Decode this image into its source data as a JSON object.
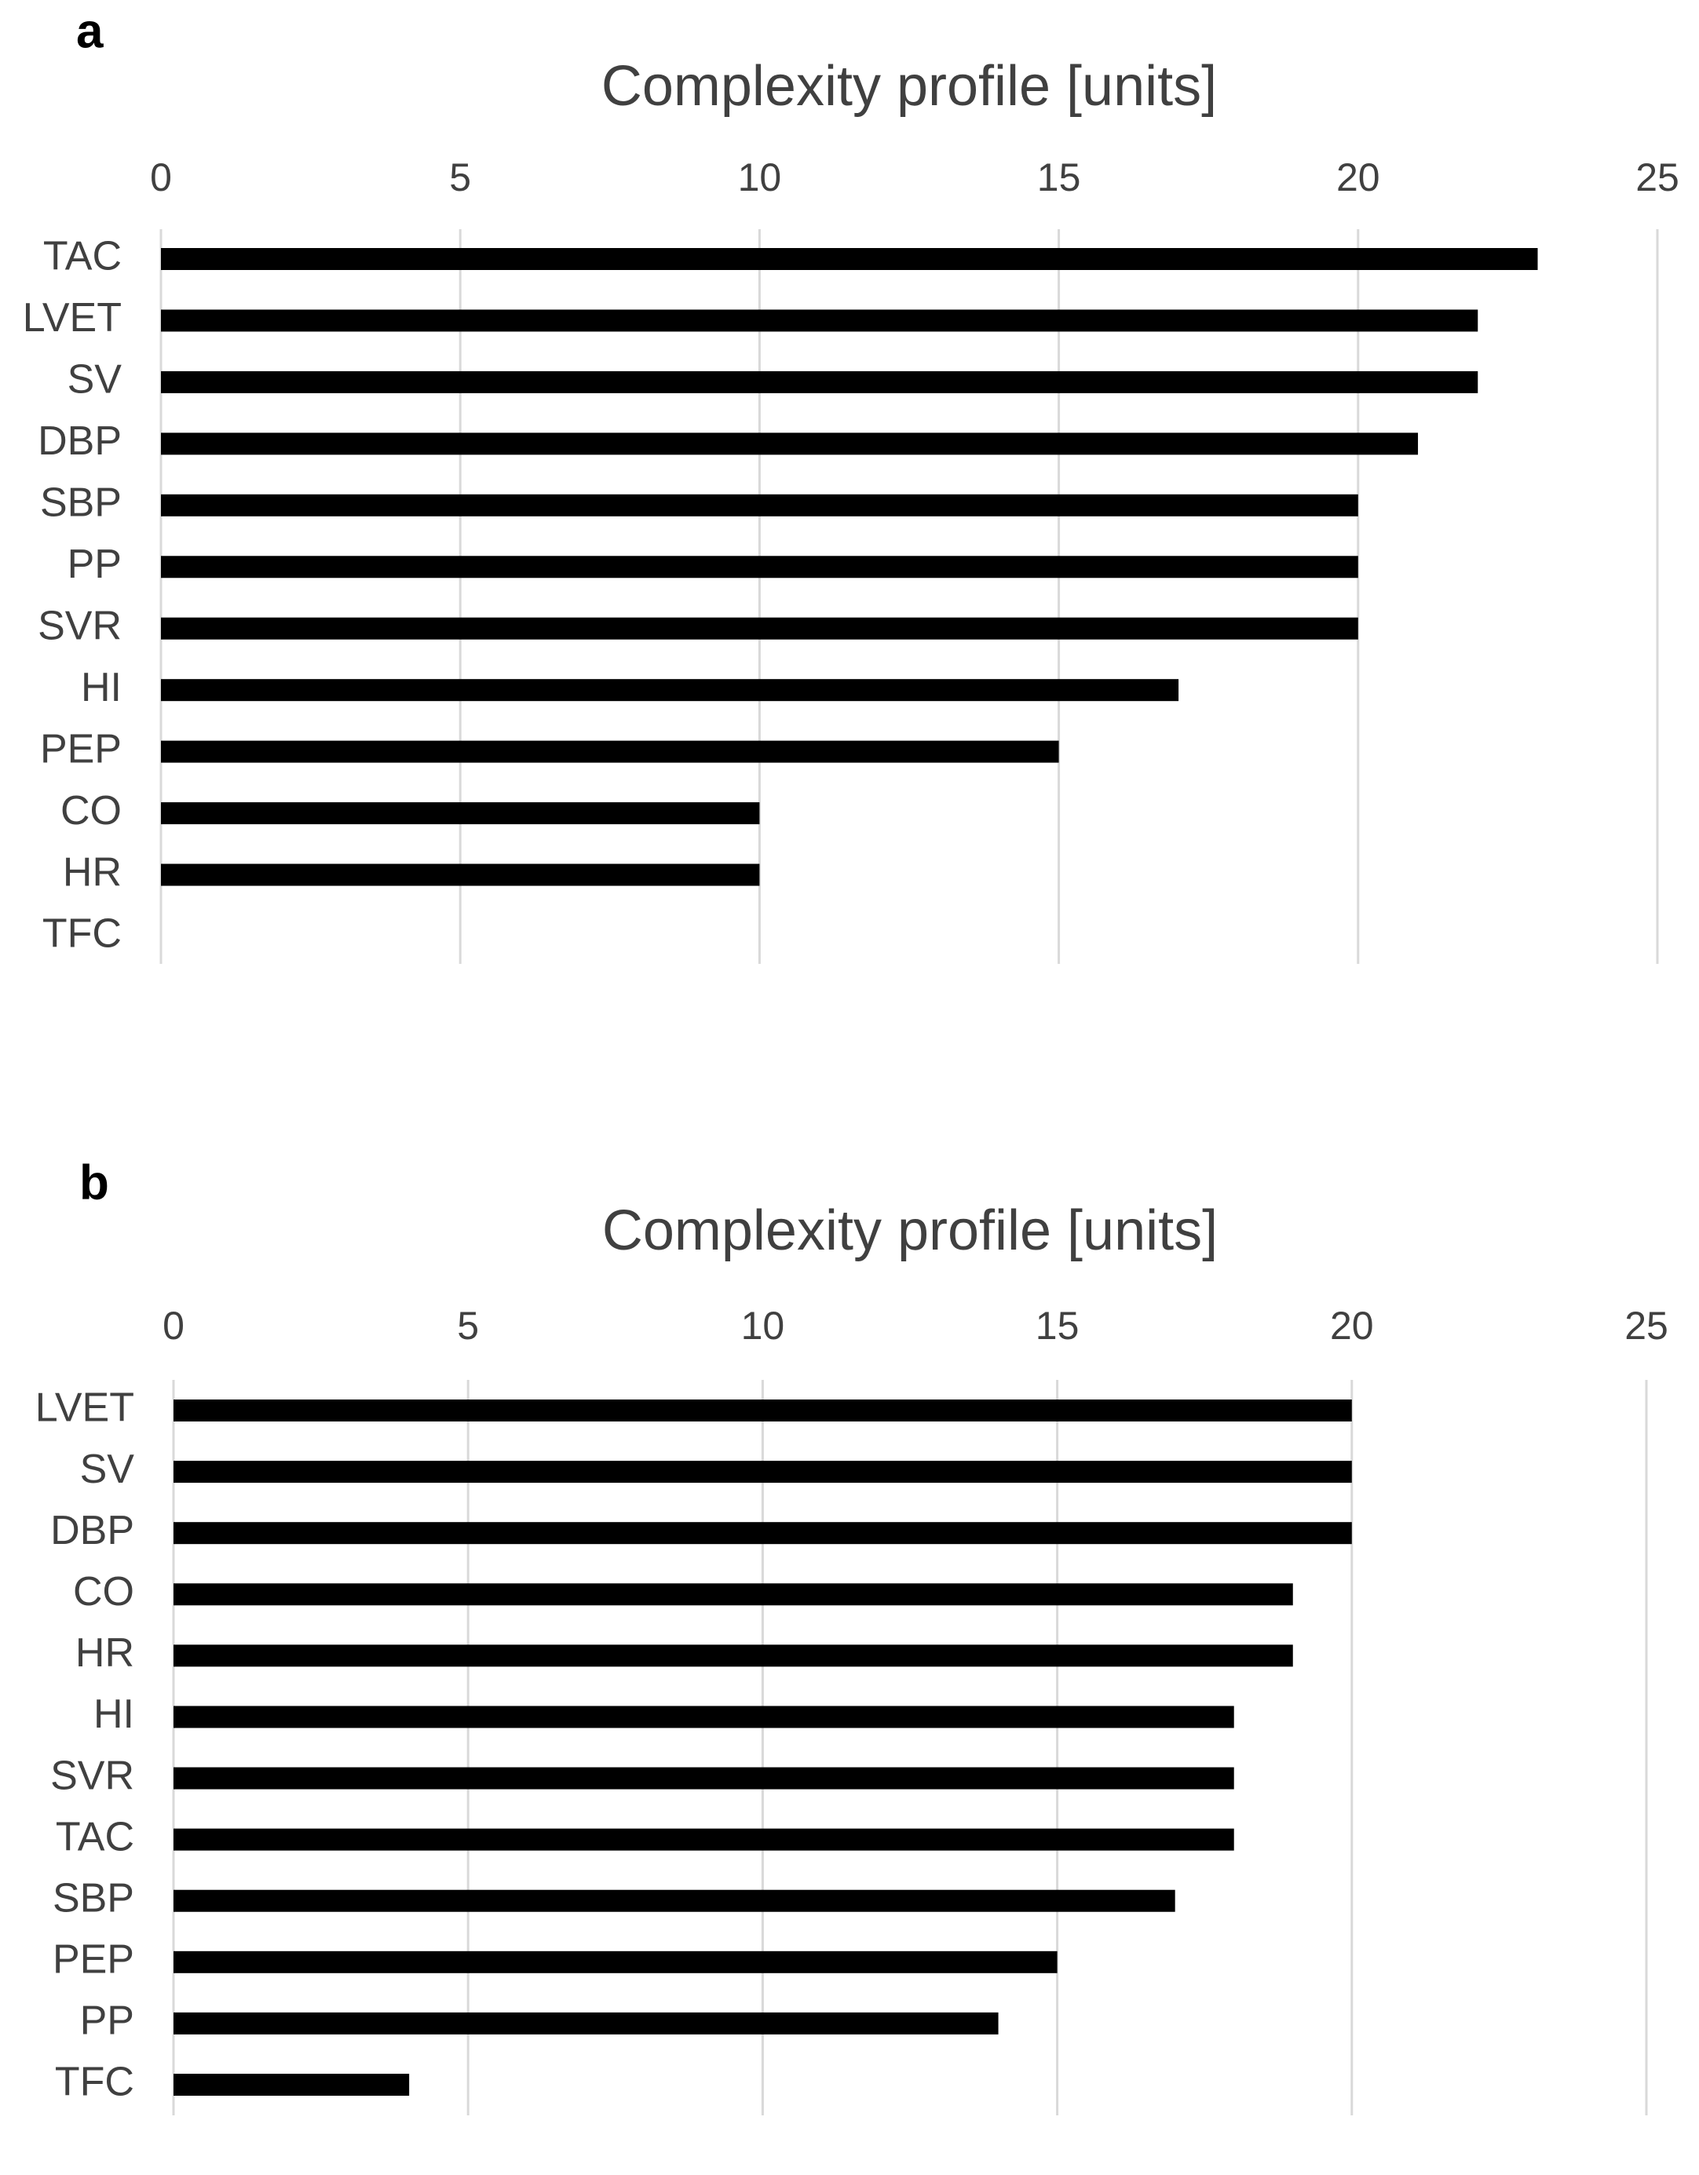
{
  "chart_data": [
    {
      "type": "barh",
      "label": "a",
      "title": "Complexity profile [units]",
      "categories": [
        "TAC",
        "LVET",
        "SV",
        "DBP",
        "SBP",
        "PP",
        "SVR",
        "HI",
        "PEP",
        "CO",
        "HR",
        "TFC"
      ],
      "values": [
        23,
        22,
        22,
        21,
        20,
        20,
        20,
        17,
        15,
        10,
        10,
        0
      ],
      "color": "#000000",
      "xlim": [
        0,
        25
      ],
      "xticks": [
        0,
        5,
        10,
        15,
        20,
        25
      ],
      "grid": true
    },
    {
      "type": "barh",
      "label": "b",
      "title": "Complexity profile [units]",
      "categories": [
        "LVET",
        "SV",
        "DBP",
        "CO",
        "HR",
        "HI",
        "SVR",
        "TAC",
        "SBP",
        "PEP",
        "PP",
        "TFC"
      ],
      "values": [
        20,
        20,
        20,
        19,
        19,
        18,
        18,
        18,
        17,
        15,
        14,
        4
      ],
      "color": "#000000",
      "xlim": [
        0,
        25
      ],
      "xticks": [
        0,
        5,
        10,
        15,
        20,
        25
      ],
      "grid": true
    }
  ]
}
